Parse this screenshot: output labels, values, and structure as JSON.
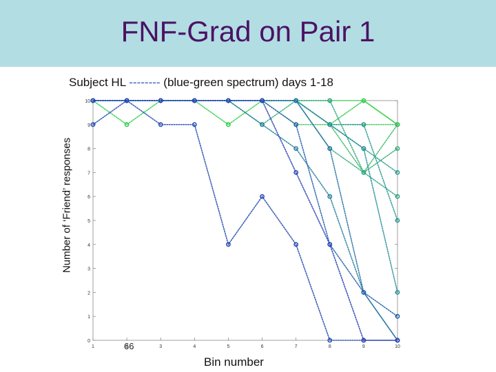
{
  "title": "FNF-Grad on Pair 1",
  "subtitle_prefix": "Subject HL",
  "subtitle_dash": "--------",
  "subtitle_suffix": "(blue-green spectrum) days 1-18",
  "slide_number": "66",
  "chart_data": {
    "type": "line",
    "xlabel": "Bin number",
    "ylabel": "Number of ‘Friend’ responses",
    "xlim": [
      1,
      10
    ],
    "ylim": [
      0,
      10
    ],
    "x_ticks": [
      "1",
      "2",
      "3",
      "4",
      "5",
      "6",
      "7",
      "8",
      "9",
      "10"
    ],
    "y_ticks": [
      "0",
      "1",
      "2",
      "3",
      "4",
      "5",
      "6",
      "7",
      "8",
      "9",
      "10"
    ],
    "grid": false,
    "x": [
      1,
      2,
      3,
      4,
      5,
      6,
      7,
      8,
      9,
      10
    ],
    "series": [
      {
        "color": "#33d04a",
        "values": [
          10,
          9,
          10,
          10,
          9,
          10,
          10,
          9,
          10,
          9
        ]
      },
      {
        "color": "#3bd04f",
        "values": [
          10,
          10,
          10,
          10,
          10,
          10,
          10,
          10,
          10,
          9
        ]
      },
      {
        "color": "#46c95a",
        "values": [
          10,
          10,
          10,
          10,
          10,
          10,
          9,
          9,
          9,
          9
        ]
      },
      {
        "color": "#3fba62",
        "values": [
          10,
          10,
          10,
          10,
          10,
          10,
          10,
          9,
          7,
          9
        ]
      },
      {
        "color": "#36b07a",
        "values": [
          10,
          10,
          10,
          10,
          10,
          9,
          10,
          8,
          7,
          8
        ]
      },
      {
        "color": "#31a887",
        "values": [
          10,
          10,
          10,
          10,
          10,
          10,
          10,
          10,
          7,
          6
        ]
      },
      {
        "color": "#2ea08e",
        "values": [
          10,
          10,
          10,
          10,
          10,
          10,
          10,
          9,
          8,
          7
        ]
      },
      {
        "color": "#2b9a92",
        "values": [
          10,
          10,
          10,
          10,
          10,
          10,
          10,
          9,
          9,
          5
        ]
      },
      {
        "color": "#2a8f98",
        "values": [
          10,
          10,
          10,
          10,
          10,
          10,
          10,
          9,
          8,
          2
        ]
      },
      {
        "color": "#277fa0",
        "values": [
          10,
          10,
          10,
          10,
          10,
          9,
          8,
          6,
          2,
          0
        ]
      },
      {
        "color": "#2671a5",
        "values": [
          10,
          10,
          10,
          10,
          10,
          10,
          10,
          8,
          2,
          0
        ]
      },
      {
        "color": "#2860ae",
        "values": [
          10,
          10,
          10,
          10,
          10,
          10,
          9,
          4,
          2,
          1
        ]
      },
      {
        "color": "#294fb5",
        "values": [
          9,
          10,
          9,
          9,
          4,
          6,
          4,
          0,
          0,
          0
        ]
      },
      {
        "color": "#2b44b6",
        "values": [
          10,
          10,
          10,
          10,
          10,
          10,
          7,
          4,
          0,
          0
        ]
      }
    ]
  }
}
